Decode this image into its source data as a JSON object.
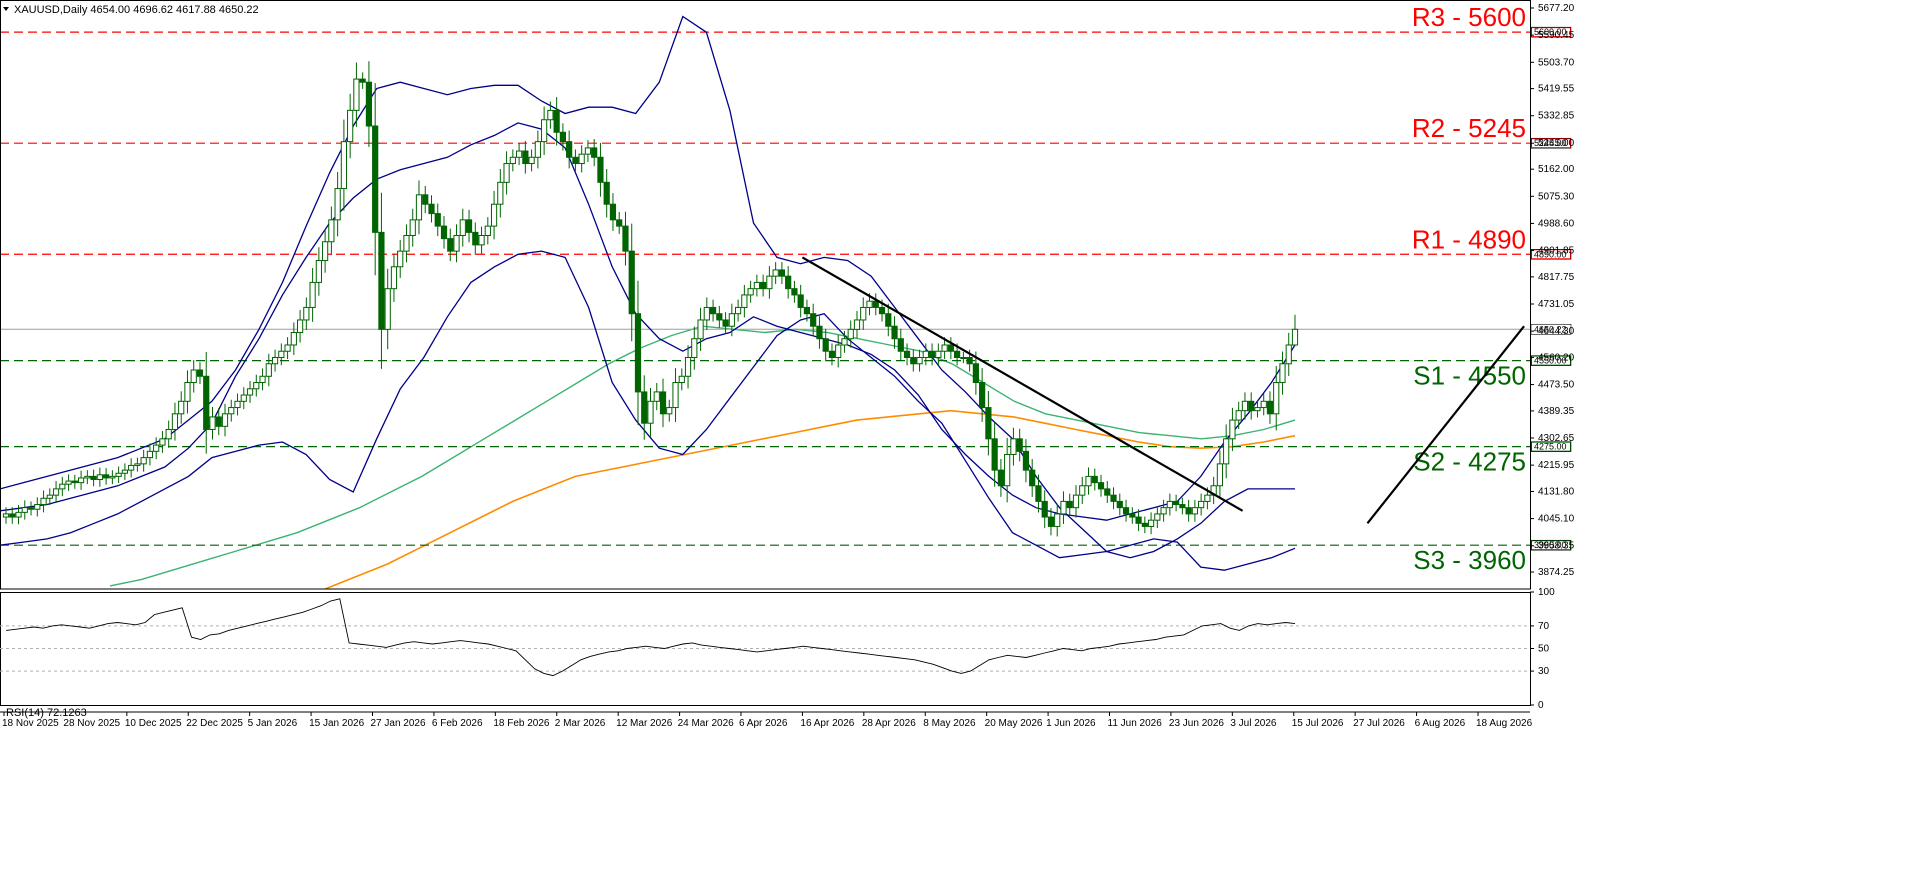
{
  "header": {
    "symbol_info": "XAUUSD,Daily  4654.00 4696.62 4617.88 4650.22",
    "rsi_label": "RSI(14) 72.1263"
  },
  "colors": {
    "resistance": "#ff0000",
    "support": "#006400",
    "bollinger": "#00008b",
    "ma_fast": "#3cb371",
    "ma_slow": "#ff8c00",
    "candle": "#006400",
    "trendline": "#000000",
    "last_price_line": "#9e9e9e"
  },
  "chart_data": [
    {
      "type": "candlestick",
      "title": "XAUUSD,Daily",
      "ohlc_last": {
        "open": 4654.0,
        "high": 4696.62,
        "low": 4617.88,
        "close": 4650.22
      },
      "last_price_label": "4650.22",
      "ylim": [
        3820,
        5690
      ],
      "y_ticks": [
        "5677.20",
        "5590.45",
        "5503.70",
        "5419.55",
        "5332.85",
        "5245.00",
        "5162.00",
        "5075.30",
        "4988.60",
        "4901.85",
        "4817.75",
        "4731.05",
        "4644.30",
        "4560.20",
        "4473.50",
        "4389.35",
        "4302.65",
        "4215.95",
        "4131.80",
        "4045.10",
        "3958.35",
        "3874.25"
      ],
      "x_ticks": [
        "18 Nov 2025",
        "28 Nov 2025",
        "10 Dec 2025",
        "22 Dec 2025",
        "5 Jan 2026",
        "15 Jan 2026",
        "27 Jan 2026",
        "6 Feb 2026",
        "18 Feb 2026",
        "2 Mar 2026",
        "12 Mar 2026",
        "24 Mar 2026",
        "6 Apr 2026",
        "16 Apr 2026",
        "28 Apr 2026",
        "8 May 2026",
        "20 May 2026",
        "1 Jun 2026",
        "11 Jun 2026",
        "23 Jun 2026",
        "3 Jul 2026",
        "15 Jul 2026",
        "27 Jul 2026",
        "6 Aug 2026",
        "18 Aug 2026"
      ],
      "closes": [
        4060,
        4050,
        4065,
        4080,
        4075,
        4090,
        4110,
        4120,
        4140,
        4155,
        4165,
        4160,
        4175,
        4180,
        4170,
        4185,
        4175,
        4180,
        4190,
        4200,
        4215,
        4220,
        4240,
        4260,
        4280,
        4300,
        4330,
        4380,
        4420,
        4480,
        4520,
        4500,
        4330,
        4370,
        4340,
        4380,
        4400,
        4420,
        4440,
        4460,
        4480,
        4500,
        4540,
        4560,
        4580,
        4600,
        4640,
        4680,
        4720,
        4800,
        4870,
        4930,
        5000,
        5100,
        5250,
        5350,
        5450,
        5440,
        5300,
        4960,
        4650,
        4780,
        4850,
        4900,
        4950,
        5000,
        5080,
        5050,
        5020,
        4980,
        4940,
        4900,
        4950,
        5000,
        4960,
        4920,
        4950,
        4980,
        5050,
        5120,
        5180,
        5200,
        5220,
        5180,
        5200,
        5250,
        5320,
        5350,
        5280,
        5250,
        5200,
        5180,
        5210,
        5230,
        5200,
        5120,
        5050,
        5000,
        4980,
        4900,
        4700,
        4450,
        4350,
        4420,
        4450,
        4380,
        4400,
        4480,
        4500,
        4560,
        4620,
        4680,
        4720,
        4700,
        4680,
        4660,
        4700,
        4720,
        4760,
        4780,
        4800,
        4780,
        4820,
        4840,
        4820,
        4780,
        4760,
        4720,
        4700,
        4660,
        4620,
        4580,
        4560,
        4600,
        4620,
        4650,
        4680,
        4720,
        4740,
        4720,
        4700,
        4660,
        4620,
        4580,
        4560,
        4540,
        4560,
        4580,
        4560,
        4580,
        4600,
        4580,
        4560,
        4560,
        4540,
        4480,
        4400,
        4300,
        4200,
        4150,
        4250,
        4300,
        4260,
        4200,
        4150,
        4100,
        4050,
        4020,
        4060,
        4100,
        4080,
        4120,
        4150,
        4180,
        4160,
        4140,
        4120,
        4100,
        4080,
        4060,
        4050,
        4030,
        4020,
        4040,
        4060,
        4080,
        4100,
        4090,
        4080,
        4060,
        4080,
        4100,
        4120,
        4150,
        4220,
        4300,
        4360,
        4390,
        4420,
        4390,
        4400,
        4420,
        4380,
        4480,
        4540,
        4600,
        4650
      ],
      "series": [
        {
          "name": "Bollinger upper",
          "values": [
            4140,
            4160,
            4180,
            4200,
            4220,
            4240,
            4270,
            4300,
            4360,
            4420,
            4520,
            4650,
            4800,
            4980,
            5150,
            5300,
            5420,
            5440,
            5420,
            5400,
            5420,
            5430,
            5430,
            5380,
            5340,
            5360,
            5360,
            5340,
            5440,
            5650,
            5600,
            5350,
            4990,
            4880,
            4860,
            4880,
            4870,
            4820,
            4720,
            4620,
            4520,
            4450,
            4370,
            4300,
            4180,
            4080,
            4010,
            3940,
            3920,
            3940,
            3980,
            4030,
            4100,
            4140,
            4140,
            4140
          ]
        },
        {
          "name": "Bollinger middle",
          "values": [
            4070,
            4080,
            4090,
            4110,
            4130,
            4150,
            4180,
            4210,
            4270,
            4350,
            4500,
            4620,
            4760,
            4880,
            4990,
            5070,
            5130,
            5160,
            5180,
            5200,
            5240,
            5270,
            5310,
            5290,
            5230,
            5050,
            4850,
            4700,
            4620,
            4580,
            4620,
            4640,
            4690,
            4660,
            4640,
            4620,
            4600,
            4570,
            4520,
            4440,
            4330,
            4250,
            4180,
            4120,
            4080,
            4060,
            4050,
            4040,
            4060,
            4080,
            4100,
            4180,
            4290,
            4380,
            4480,
            4600
          ]
        },
        {
          "name": "Bollinger lower",
          "values": [
            3960,
            3970,
            3980,
            4000,
            4030,
            4060,
            4100,
            4140,
            4180,
            4240,
            4260,
            4280,
            4290,
            4250,
            4170,
            4130,
            4300,
            4460,
            4560,
            4690,
            4800,
            4850,
            4890,
            4900,
            4880,
            4720,
            4480,
            4360,
            4270,
            4250,
            4330,
            4430,
            4530,
            4630,
            4680,
            4700,
            4620,
            4560,
            4500,
            4420,
            4350,
            4230,
            4110,
            4000,
            3960,
            3920,
            3930,
            3940,
            3960,
            3980,
            3970,
            3890,
            3880,
            3900,
            3920,
            3950
          ]
        },
        {
          "name": "MA fast",
          "values": [
            3830,
            3850,
            3880,
            3910,
            3940,
            3970,
            4000,
            4040,
            4080,
            4130,
            4180,
            4240,
            4300,
            4360,
            4420,
            4480,
            4540,
            4590,
            4630,
            4660,
            4650,
            4640,
            4650,
            4640,
            4620,
            4600,
            4580,
            4540,
            4480,
            4420,
            4380,
            4360,
            4340,
            4320,
            4310,
            4300,
            4310,
            4330,
            4360
          ]
        },
        {
          "name": "MA slow",
          "values": [
            3820,
            3860,
            3900,
            3950,
            4000,
            4050,
            4100,
            4140,
            4180,
            4200,
            4220,
            4240,
            4260,
            4280,
            4300,
            4320,
            4340,
            4360,
            4370,
            4380,
            4390,
            4380,
            4370,
            4350,
            4330,
            4310,
            4290,
            4275,
            4270,
            4275,
            4290,
            4310
          ]
        }
      ],
      "levels": [
        {
          "label": "R3 - 5600",
          "tag": "5600.00",
          "value": 5600,
          "kind": "resistance"
        },
        {
          "label": "R2 - 5245",
          "tag": "5245.00",
          "value": 5245,
          "kind": "resistance"
        },
        {
          "label": "R1 - 4890",
          "tag": "4890.00",
          "value": 4890,
          "kind": "resistance"
        },
        {
          "label": "S1 - 4550",
          "tag": "4550.00",
          "value": 4550,
          "kind": "support"
        },
        {
          "label": "S2 - 4275",
          "tag": "4275.00",
          "value": 4275,
          "kind": "support"
        },
        {
          "label": "S3 - 3960",
          "tag": "3960.00",
          "value": 3960,
          "kind": "support"
        }
      ],
      "trendlines": [
        {
          "name": "downtrend",
          "from": [
            "16 Apr 2026",
            4880
          ],
          "to": [
            "5 Jul 2026",
            4070
          ]
        },
        {
          "name": "uptrend",
          "from": [
            "29 Jul 2026",
            4030
          ],
          "to": [
            "27 Aug 2026",
            4660
          ]
        }
      ]
    },
    {
      "type": "line",
      "title": "RSI(14) 72.1263",
      "ylim": [
        0,
        100
      ],
      "y_ticks": [
        "100",
        "70",
        "50",
        "30",
        "0"
      ],
      "values": [
        66,
        67,
        68,
        69,
        68,
        70,
        71,
        70,
        69,
        68,
        70,
        72,
        73,
        72,
        71,
        73,
        80,
        82,
        84,
        86,
        60,
        58,
        62,
        63,
        66,
        68,
        70,
        72,
        74,
        76,
        78,
        80,
        82,
        85,
        88,
        92,
        94,
        55,
        54,
        53,
        52,
        51,
        53,
        55,
        56,
        55,
        54,
        55,
        56,
        57,
        56,
        55,
        54,
        52,
        50,
        48,
        40,
        32,
        28,
        26,
        30,
        35,
        40,
        43,
        45,
        47,
        48,
        50,
        51,
        52,
        51,
        50,
        52,
        54,
        55,
        53,
        52,
        51,
        50,
        49,
        48,
        47,
        48,
        49,
        50,
        51,
        52,
        51,
        50,
        49,
        48,
        47,
        46,
        45,
        44,
        43,
        42,
        41,
        40,
        38,
        36,
        33,
        30,
        28,
        30,
        35,
        40,
        42,
        44,
        43,
        42,
        44,
        46,
        48,
        50,
        49,
        48,
        50,
        51,
        52,
        54,
        55,
        56,
        57,
        58,
        60,
        61,
        62,
        66,
        70,
        71,
        72,
        68,
        66,
        70,
        72,
        71,
        72,
        73,
        72
      ]
    }
  ]
}
